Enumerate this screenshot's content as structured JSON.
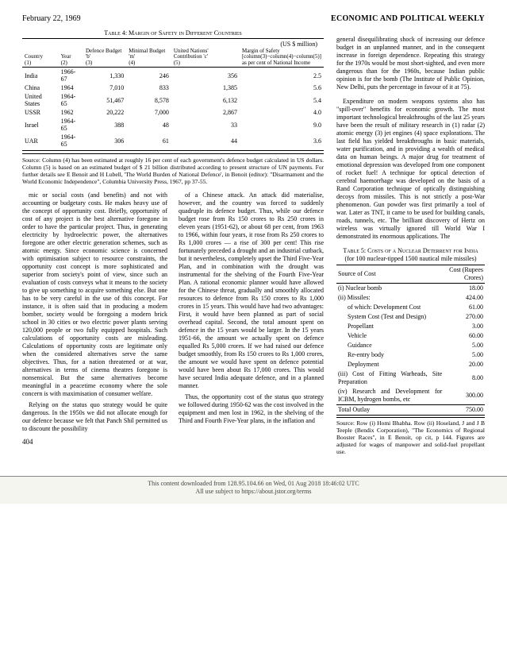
{
  "header": {
    "date": "February 22, 1969",
    "journal": "ECONOMIC AND POLITICAL WEEKLY"
  },
  "table4": {
    "title": "Table 4: Margin of Safety in Different Countries",
    "unit": "(US $ million)",
    "headers": {
      "c1": "Country",
      "c2": "Year",
      "c3": "Defence Budget 'b'",
      "c4": "Minimal Budget 'm'",
      "c5": "United Nations' Contribution 'c'",
      "c6": "Margin of Safety [column(3)−column(4)−column(5)] as per cent of National Income",
      "n1": "(1)",
      "n2": "(2)",
      "n3": "(3)",
      "n4": "(4)",
      "n5": "(5)"
    },
    "rows": [
      {
        "country": "India",
        "year": "1966-67",
        "b": "1,330",
        "m": "246",
        "c": "356",
        "ms": "2.5"
      },
      {
        "country": "China",
        "year": "1964",
        "b": "7,010",
        "m": "833",
        "c": "1,385",
        "ms": "5.6"
      },
      {
        "country": "United States",
        "year": "1964-65",
        "b": "51,467",
        "m": "8,578",
        "c": "6,132",
        "ms": "5.4"
      },
      {
        "country": "USSR",
        "year": "1962",
        "b": "20,222",
        "m": "7,000",
        "c": "2,867",
        "ms": "4.0"
      },
      {
        "country": "Israel",
        "year": "1964-65",
        "b": "388",
        "m": "48",
        "c": "33",
        "ms": "9.0"
      },
      {
        "country": "UAR",
        "year": "1964-65",
        "b": "306",
        "m": "61",
        "c": "44",
        "ms": "3.6"
      }
    ],
    "source": "Source: Column (4) has been estimated at roughly 16 per cent of each government's defence budget calculated in US dollars. Column (5) is based on an estimated budget of $ 21 billion distributed according to present structure of UN payments. For further details see E Benoit and H Lubell, 'The World Burden of National Defence', in Benoit (editor): \"Disarmament and the World Economic Independence\", Columbia University Press, 1967, pp 37-55."
  },
  "body": {
    "p1": "mic or social costs (and benefits) and not with accounting or budgetary costs. He makes heavy use of the concept of opportunity cost. Briefly, opportunity of cost of any project is the best alternative foregone in order to have the particular project. Thus, in generating electricity by hydroelectric power, the alternatives foregone are other electric generation schemes, such as atomic energy. Since economic science is concerned with optimisation subject to resource constraints, the opportunity cost concept is more sophisticated and superior from society's point of view, since such an evaluation of costs conveys what it means to the society to give up something to acquire something else. But one has to be very careful in the use of this concept. For instance, it is often said that in producing a modern bomber, society would be foregoing a modern brick school in 30 cities or two electric power plants serving 120,000 people or two fully equipped hospitals. Such calculations of opportunity costs are misleading. Calculations of opportunity costs are legitimate only when the considered alternatives serve the same objectives. Thus, for a nation threatened or at war, alternatives in terms of cinema theatres foregone is nonsensical. But the same alternatives become meaningful in a peacetime economy where the sole concern is with maximisation of consumer welfare.",
    "p2": "Relying on the status quo strategy would be quite dangerous. In the 1950s we did not allocate enough for our defence because we felt that Panch Shil permitted us to discount the possibility",
    "p3": "of a Chinese attack. An attack did materialise, however, and the country was forced to suddenly quadruple its defence budget. Thus, while our defence budget rose from Rs 150 crores to Rs 250 crores in eleven years (1951-62), or about 68 per cent, from 1963 to 1966, within four years, it rose from Rs 250 crores to Rs 1,000 crores — a rise of 300 per cent! This rise fortunately preceded a drought and an industrial cutback, but it nevertheless, completely upset the Third Five-Year Plan, and in combination with the drought was instrumental for the shelving of the Fourth Five-Year Plan. A rational economic planner would have allowed for the Chinese threat, gradually and smoothly allocated resources to defence from Rs 150 crores to Rs 1,000 crores in 15 years. This would have had two advantages: First, it would have been planned as part of social overhead capital. Second, the total amount spent on defence in the 15 years would be larger. In the 15 years 1951-66, the amount we actually spent on defence equalled Rs 5,000 crores. If we had raised our defence budget smoothly, from Rs 150 crores to Rs 1,000 crores, the amount we would have spent on defence potential would have been about Rs 17,000 crores. This would have secured India adequate defence, and in a planned manner.",
    "p4": "Thus, the opportunity cost of the status quo strategy we followed during 1950-62 was the cost involved in the equipment and men lost in 1962, in the shelving of the Third and Fourth Five-Year plans, in the inflation and"
  },
  "right": {
    "p1": "general disequilibrating shock of increasing our defence budget in an unplanned manner, and in the consequent increase in foreign dependence. Repeating this strategy for the 1970s would be most short-sighted, and even more dangerous than for the 1960s, because Indian public opinion is for the bomb (The Institute of Public Opinion, New Delhi, puts the percentage in favour of it at 75).",
    "p2": "Expenditure on modern weapons systems also has \"spill-over\" benefits for economic growth. The most important technological breakthroughs of the last 25 years have been the result of military research in (1) radar (2) atomic energy (3) jet engines (4) space explorations. The last field has yielded breakthroughs in basic materials, water purification, and in providing a wealth of medical data on human beings. A major drug for treatment of emotional depression was developed from one component of rocket fuel! A technique for optical detection of cerebral haemorrhage was developed on the basis of a Rand Corporation technique of optically distinguishing decoys from missiles. This is not strictly a post-War phenomenon. Gun powder was first primarily a tool of war. Later as TNT, it came to be used for building canals, roads, tunnels, etc. The brilliant discovery of Hertz on wireless was virtually ignored till World War I demonstrated its enormous applications. The"
  },
  "table5": {
    "title": "Table 5: Costs of a Nuclear Deterrent for India",
    "sub": "(for 100 nuclear-tipped 1500 nautical mile missiles)",
    "head1": "Source of Cost",
    "head2": "Cost (Rupees Crores)",
    "rows": [
      {
        "label": "(i) Nuclear bomb",
        "val": "18.00"
      },
      {
        "label": "(ii) Missiles:",
        "val": "424.00"
      },
      {
        "label": "of which: Development Cost",
        "val": "61.00",
        "indent": true
      },
      {
        "label": "System Cost (Test and Design)",
        "val": "270.00",
        "indent": true
      },
      {
        "label": "Propellant",
        "val": "3.00",
        "indent": true
      },
      {
        "label": "Vehicle",
        "val": "60.00",
        "indent": true
      },
      {
        "label": "Guidance",
        "val": "5.00",
        "indent": true
      },
      {
        "label": "Re-entry body",
        "val": "5.00",
        "indent": true
      },
      {
        "label": "Deployment",
        "val": "20.00",
        "indent": true
      },
      {
        "label": "(iii) Cost of Fitting Warheads, Site Preparation",
        "val": "8.00"
      },
      {
        "label": "(iv) Research and Development for ICBM, hydrogen bombs, etc",
        "val": "300.00"
      }
    ],
    "total_label": "Total Outlay",
    "total_val": "750.00",
    "source": "Source: Row (i) Homi Bhabha. Row (ii) Hoseland, J and J B Teeple (Bendix Corporation), \"The Economics of Regional Booster Races\", in E Benoit, op cit, p 144. Figures are adjusted for wages of manpower and solid-fuel propellant use."
  },
  "pagenum": "404",
  "footer": {
    "l1": "This content downloaded from 128.95.104.66 on Wed, 01 Aug 2018 18:46:02 UTC",
    "l2": "All use subject to https://about.jstor.org/terms"
  }
}
